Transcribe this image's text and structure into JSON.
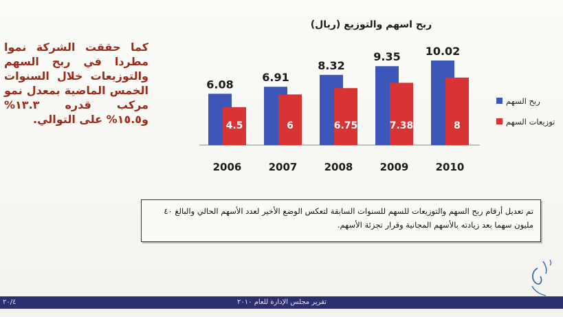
{
  "side_text": "كما حققت الشركة نموا مطردا في ربح السهم والتوزيعات خلال السنوات الخمس الماضية بمعدل نمو مركب قدره ١٣.٣% و١٥.٥% على التوالي.",
  "note_text": "تم تعديل أرقام ربح السهم والتوزيعات للسهم للسنوات السابقة لتعكس الوضع الأخير لعدد الأسهم الحالي والبالغ ٤٠ مليون سهما بعد زيادته بالأسهم المجانية وقرار تجزئة الأسهم.",
  "footer": {
    "title": "تقرير مجلس الإدارة للعام ٢٠١٠",
    "page": "٢٠/٤"
  },
  "colors": {
    "eps": "#3c57b7",
    "dividends": "#d93434",
    "text_red": "#9a2a1c",
    "footer_bar": "#2c2e6e"
  },
  "chart_data": {
    "type": "bar",
    "title": "ربح اسهم والتوزيع (ريال)",
    "categories": [
      "2006",
      "2007",
      "2008",
      "2009",
      "2010"
    ],
    "series": [
      {
        "name": "ربح السهم",
        "values": [
          6.08,
          6.91,
          8.32,
          9.35,
          10.02
        ]
      },
      {
        "name": "توزيعات السهم",
        "values": [
          4.5,
          6,
          6.75,
          7.38,
          8
        ]
      }
    ],
    "value_labels": [
      [
        "6.08",
        "6.91",
        "8.32",
        "9.35",
        "10.02"
      ],
      [
        "4.5",
        "6",
        "6.75",
        "7.38",
        "8"
      ]
    ],
    "ylim": [
      0,
      12
    ],
    "legend_position": "right",
    "grid": false
  }
}
